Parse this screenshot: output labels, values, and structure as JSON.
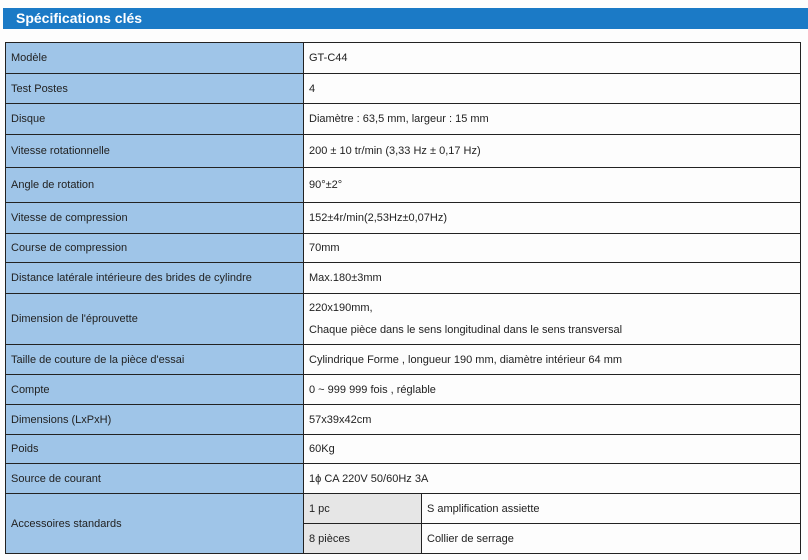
{
  "title": "Spécifications clés",
  "rows": [
    {
      "label": "Modèle",
      "value": "GT-C44"
    },
    {
      "label": "Test Postes",
      "value": "4"
    },
    {
      "label": "Disque",
      "value": "Diamètre : 63,5 mm, largeur : 15 mm"
    },
    {
      "label": "Vitesse rotationnelle",
      "value": "200 ± 10 tr/min (3,33 Hz ± 0,17 Hz)"
    },
    {
      "label": "Angle de rotation",
      "value": "90°±2°"
    },
    {
      "label": "Vitesse de compression",
      "value": "152±4r/min(2,53Hz±0,07Hz)"
    },
    {
      "label": "Course de compression",
      "value": "70mm"
    },
    {
      "label": "Distance latérale intérieure des brides de cylindre",
      "value": "Max.180±3mm"
    },
    {
      "label": "Dimension de l'éprouvette",
      "value": "220x190mm,",
      "value2": "Chaque pièce dans le sens longitudinal dans le sens transversal"
    },
    {
      "label": "Taille de couture de la pièce d'essai",
      "value": "Cylindrique Forme , longueur 190 mm, diamètre intérieur 64 mm"
    },
    {
      "label": "Compte",
      "value": "0 ~ 999 999 fois , réglable"
    },
    {
      "label": "Dimensions (LxPxH)",
      "value": "57x39x42cm"
    },
    {
      "label": "Poids",
      "value": "60Kg"
    },
    {
      "label": "Source de courant",
      "value": "1ϕ CA 220V 50/60Hz 3A"
    }
  ],
  "accessories": {
    "label": "Accessoires standards",
    "items": [
      {
        "qty": "1 pc",
        "name": "S amplification assiette"
      },
      {
        "qty": "8 pièces",
        "name": "Collier de serrage"
      }
    ]
  }
}
